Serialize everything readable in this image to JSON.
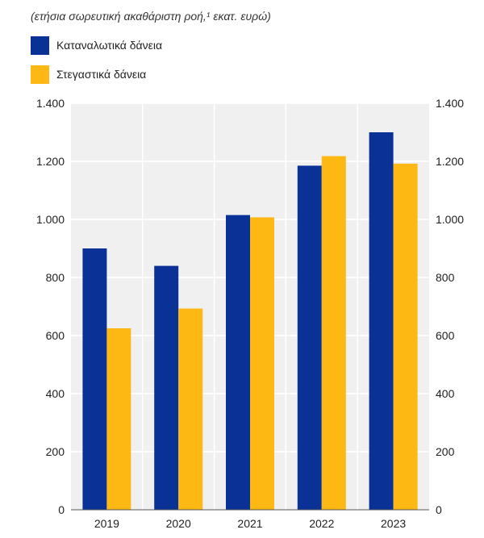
{
  "subtitle": "(ετήσια σωρευτική ακαθάριστη ροή,¹ εκατ. ευρώ)",
  "colors": {
    "consumer": "#0a3296",
    "housing": "#fdb813",
    "plot_bg": "#f0f0f0",
    "grid": "#ffffff"
  },
  "chart_data": {
    "type": "bar",
    "title": "(ετήσια σωρευτική ακαθάριστη ροή,¹ εκατ. ευρώ)",
    "categories": [
      "2019",
      "2020",
      "2021",
      "2022",
      "2023"
    ],
    "series": [
      {
        "name": "Καταναλωτικά δάνεια",
        "values": [
          900,
          840,
          1015,
          1185,
          1300
        ]
      },
      {
        "name": "Στεγαστικά δάνεια",
        "values": [
          625,
          693,
          1007,
          1218,
          1192
        ]
      }
    ],
    "ylim": [
      0,
      1400
    ],
    "yticks": [
      0,
      200,
      400,
      600,
      800,
      1000,
      1200,
      1400
    ],
    "ytick_labels": [
      "0",
      "200",
      "400",
      "600",
      "800",
      "1.000",
      "1.200",
      "1.400"
    ],
    "xlabel": "",
    "ylabel": "",
    "legend_position": "top-left",
    "grid": true
  }
}
